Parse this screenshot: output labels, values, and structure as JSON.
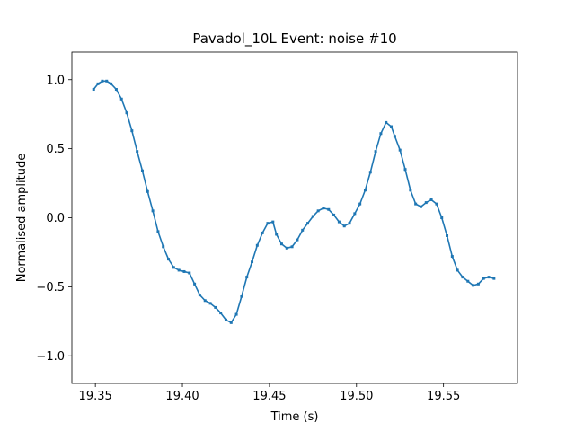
{
  "chart_data": {
    "type": "line",
    "title": "Pavadol_10L Event: noise #10",
    "xlabel": "Time (s)",
    "ylabel": "Normalised amplitude",
    "xlim": [
      19.3365,
      19.5925
    ],
    "ylim": [
      -1.2,
      1.2
    ],
    "xticks": [
      19.35,
      19.4,
      19.45,
      19.5,
      19.55
    ],
    "xtick_labels": [
      "19.35",
      "19.40",
      "19.45",
      "19.50",
      "19.55"
    ],
    "yticks": [
      1.0,
      0.5,
      0.0,
      -0.5,
      -1.0
    ],
    "ytick_labels": [
      "1.0",
      "0.5",
      "0.0",
      "−0.5",
      "−1.0"
    ],
    "grid": false,
    "series": [
      {
        "color": "#1f77b4",
        "x": [
          19.349,
          19.3515,
          19.354,
          19.3565,
          19.359,
          19.362,
          19.365,
          19.368,
          19.371,
          19.374,
          19.377,
          19.38,
          19.383,
          19.386,
          19.389,
          19.392,
          19.395,
          19.398,
          19.401,
          19.404,
          19.407,
          19.41,
          19.413,
          19.416,
          19.419,
          19.422,
          19.425,
          19.428,
          19.431,
          19.434,
          19.437,
          19.44,
          19.443,
          19.446,
          19.449,
          19.452,
          19.454,
          19.457,
          19.46,
          19.463,
          19.466,
          19.469,
          19.472,
          19.475,
          19.478,
          19.481,
          19.484,
          19.487,
          19.49,
          19.493,
          19.496,
          19.499,
          19.502,
          19.505,
          19.508,
          19.511,
          19.514,
          19.517,
          19.52,
          19.522,
          19.525,
          19.528,
          19.531,
          19.534,
          19.537,
          19.54,
          19.543,
          19.546,
          19.549,
          19.552,
          19.555,
          19.558,
          19.561,
          19.564,
          19.567,
          19.57,
          19.573,
          19.576,
          19.579
        ],
        "y": [
          0.93,
          0.97,
          0.99,
          0.99,
          0.97,
          0.93,
          0.86,
          0.76,
          0.63,
          0.48,
          0.34,
          0.19,
          0.05,
          -0.1,
          -0.21,
          -0.3,
          -0.36,
          -0.38,
          -0.39,
          -0.4,
          -0.48,
          -0.56,
          -0.6,
          -0.62,
          -0.65,
          -0.69,
          -0.74,
          -0.76,
          -0.7,
          -0.57,
          -0.43,
          -0.32,
          -0.2,
          -0.11,
          -0.04,
          -0.03,
          -0.12,
          -0.19,
          -0.22,
          -0.21,
          -0.16,
          -0.09,
          -0.04,
          0.01,
          0.05,
          0.07,
          0.06,
          0.02,
          -0.03,
          -0.06,
          -0.04,
          0.03,
          0.1,
          0.2,
          0.33,
          0.48,
          0.61,
          0.69,
          0.66,
          0.59,
          0.49,
          0.35,
          0.2,
          0.1,
          0.08,
          0.11,
          0.13,
          0.1,
          0.0,
          -0.13,
          -0.28,
          -0.38,
          -0.43,
          -0.46,
          -0.49,
          -0.48,
          -0.44,
          -0.43,
          -0.44
        ]
      }
    ]
  }
}
